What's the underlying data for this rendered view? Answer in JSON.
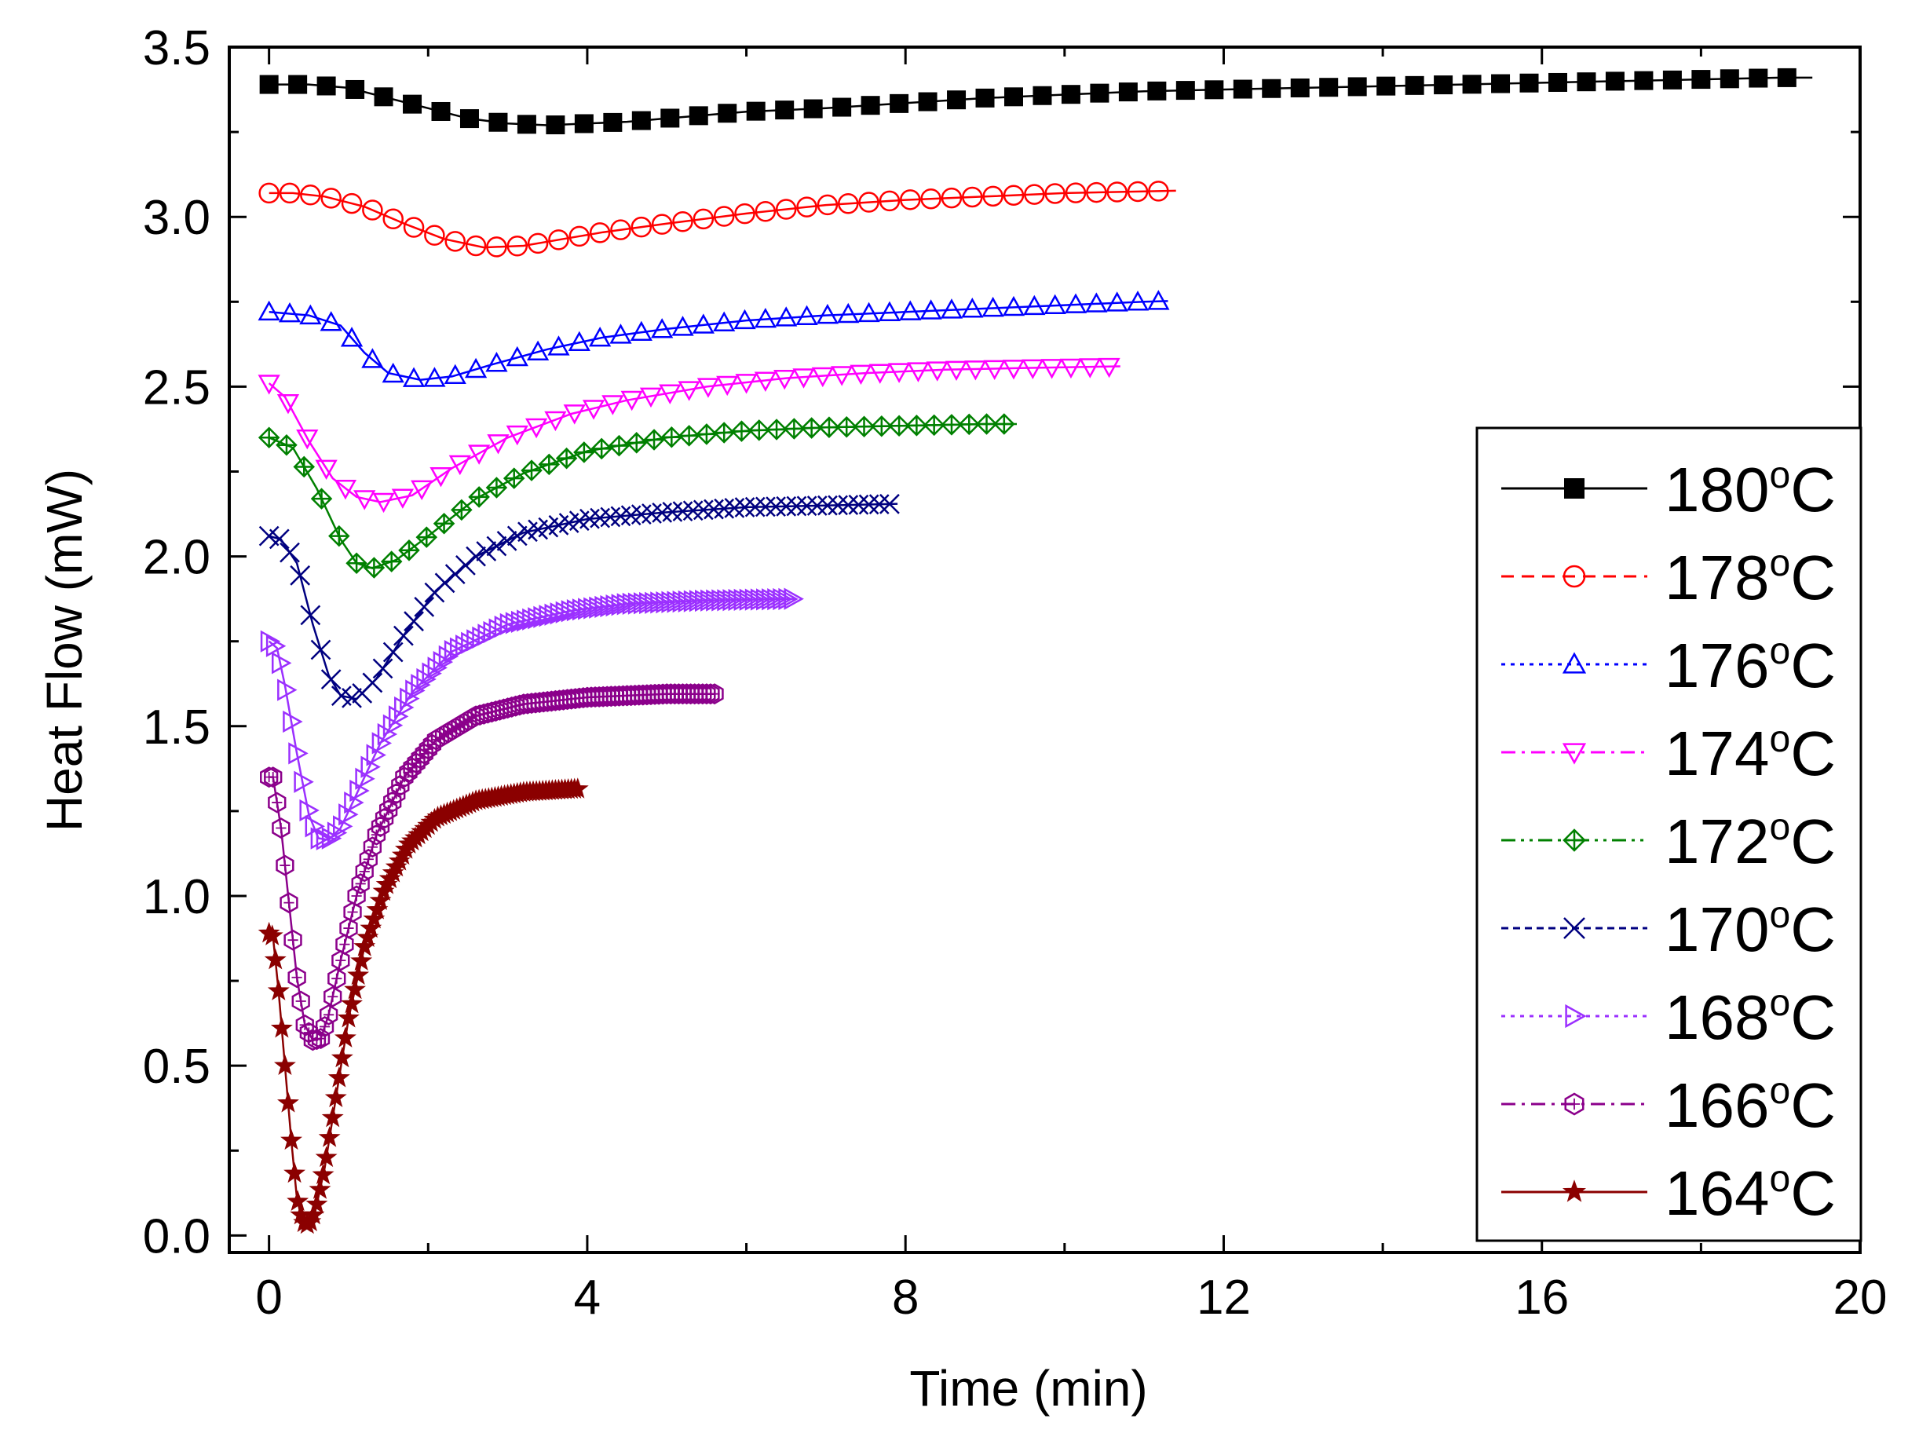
{
  "chart_data": {
    "type": "line",
    "title": "",
    "xlabel": "Time (min)",
    "ylabel": "Heat Flow (mW)",
    "xlim": [
      -0.5,
      20
    ],
    "ylim": [
      -0.05,
      3.5
    ],
    "x_ticks": [
      0,
      4,
      8,
      12,
      16,
      20
    ],
    "x_tick_labels": [
      "0",
      "4",
      "8",
      "12",
      "16",
      "20"
    ],
    "x_minor_step": 2,
    "y_ticks": [
      0.0,
      0.5,
      1.0,
      1.5,
      2.0,
      2.5,
      3.0,
      3.5
    ],
    "y_tick_labels": [
      "0.0",
      "0.5",
      "1.0",
      "1.5",
      "2.0",
      "2.5",
      "3.0",
      "3.5"
    ],
    "y_minor_step": 0.25,
    "grid": false,
    "legend_position": "right",
    "series": [
      {
        "name": "180°C",
        "label_num": "180",
        "label_sup": "o",
        "label_unit": "C",
        "color": "#000000",
        "marker": "square-filled",
        "dash": "solid",
        "legend_dash": "solid",
        "marker_step": 0.36,
        "points": [
          [
            0,
            3.39
          ],
          [
            0.5,
            3.39
          ],
          [
            1,
            3.38
          ],
          [
            1.5,
            3.35
          ],
          [
            2,
            3.32
          ],
          [
            2.5,
            3.29
          ],
          [
            3,
            3.275
          ],
          [
            3.5,
            3.27
          ],
          [
            4,
            3.275
          ],
          [
            4.5,
            3.28
          ],
          [
            5,
            3.29
          ],
          [
            6,
            3.31
          ],
          [
            7,
            3.32
          ],
          [
            8,
            3.335
          ],
          [
            9,
            3.35
          ],
          [
            10,
            3.36
          ],
          [
            11,
            3.37
          ],
          [
            12,
            3.375
          ],
          [
            13,
            3.38
          ],
          [
            14,
            3.385
          ],
          [
            15,
            3.39
          ],
          [
            16,
            3.395
          ],
          [
            17,
            3.4
          ],
          [
            18,
            3.405
          ],
          [
            19,
            3.41
          ],
          [
            19.4,
            3.41
          ]
        ]
      },
      {
        "name": "178°C",
        "label_num": "178",
        "label_sup": "o",
        "label_unit": "C",
        "color": "#ff0000",
        "marker": "circle-open",
        "dash": "solid",
        "legend_dash": "dash",
        "marker_step": 0.26,
        "points": [
          [
            0,
            3.07
          ],
          [
            0.3,
            3.07
          ],
          [
            0.7,
            3.06
          ],
          [
            1.2,
            3.03
          ],
          [
            1.7,
            2.98
          ],
          [
            2.2,
            2.935
          ],
          [
            2.7,
            2.91
          ],
          [
            3.2,
            2.915
          ],
          [
            3.7,
            2.935
          ],
          [
            4.2,
            2.955
          ],
          [
            5,
            2.98
          ],
          [
            6,
            3.01
          ],
          [
            7,
            3.035
          ],
          [
            8,
            3.05
          ],
          [
            9,
            3.06
          ],
          [
            10,
            3.07
          ],
          [
            11,
            3.075
          ],
          [
            11.4,
            3.077
          ]
        ]
      },
      {
        "name": "176°C",
        "label_num": "176",
        "label_sup": "o",
        "label_unit": "C",
        "color": "#0000ff",
        "marker": "triangle-up-open",
        "dash": "solid",
        "legend_dash": "dot",
        "marker_step": 0.26,
        "points": [
          [
            0,
            2.72
          ],
          [
            0.5,
            2.71
          ],
          [
            0.9,
            2.68
          ],
          [
            1.2,
            2.6
          ],
          [
            1.5,
            2.54
          ],
          [
            1.9,
            2.52
          ],
          [
            2.3,
            2.53
          ],
          [
            2.8,
            2.565
          ],
          [
            3.5,
            2.61
          ],
          [
            4.2,
            2.645
          ],
          [
            5,
            2.67
          ],
          [
            6,
            2.695
          ],
          [
            7,
            2.71
          ],
          [
            8,
            2.72
          ],
          [
            9,
            2.73
          ],
          [
            10,
            2.74
          ],
          [
            11,
            2.75
          ],
          [
            11.3,
            2.752
          ]
        ]
      },
      {
        "name": "174°C",
        "label_num": "174",
        "label_sup": "o",
        "label_unit": "C",
        "color": "#ff00ff",
        "marker": "triangle-down-open",
        "dash": "solid",
        "legend_dash": "dashdot",
        "marker_step": 0.24,
        "points": [
          [
            0,
            2.51
          ],
          [
            0.2,
            2.47
          ],
          [
            0.5,
            2.34
          ],
          [
            0.8,
            2.23
          ],
          [
            1.1,
            2.175
          ],
          [
            1.4,
            2.16
          ],
          [
            1.8,
            2.18
          ],
          [
            2.3,
            2.26
          ],
          [
            3,
            2.35
          ],
          [
            3.8,
            2.42
          ],
          [
            4.5,
            2.46
          ],
          [
            5.5,
            2.5
          ],
          [
            6.5,
            2.525
          ],
          [
            7.5,
            2.54
          ],
          [
            8.5,
            2.55
          ],
          [
            9.5,
            2.555
          ],
          [
            10.7,
            2.56
          ]
        ]
      },
      {
        "name": "172°C",
        "label_num": "172",
        "label_sup": "o",
        "label_unit": "C",
        "color": "#008000",
        "marker": "diamond-cross",
        "dash": "solid",
        "legend_dash": "dashdotdot",
        "marker_step": 0.22,
        "points": [
          [
            0,
            2.35
          ],
          [
            0.3,
            2.32
          ],
          [
            0.6,
            2.2
          ],
          [
            0.9,
            2.05
          ],
          [
            1.1,
            1.98
          ],
          [
            1.3,
            1.965
          ],
          [
            1.6,
            1.99
          ],
          [
            2.0,
            2.06
          ],
          [
            2.6,
            2.17
          ],
          [
            3.2,
            2.245
          ],
          [
            4,
            2.31
          ],
          [
            5,
            2.35
          ],
          [
            6,
            2.37
          ],
          [
            7,
            2.38
          ],
          [
            8,
            2.385
          ],
          [
            9,
            2.39
          ],
          [
            9.4,
            2.39
          ]
        ]
      },
      {
        "name": "170°C",
        "label_num": "170",
        "label_sup": "o",
        "label_unit": "C",
        "color": "#000080",
        "marker": "x-open",
        "dash": "solid",
        "legend_dash": "shortdash",
        "marker_step": 0.13,
        "points": [
          [
            0,
            2.06
          ],
          [
            0.15,
            2.05
          ],
          [
            0.35,
            1.98
          ],
          [
            0.55,
            1.8
          ],
          [
            0.75,
            1.65
          ],
          [
            0.9,
            1.59
          ],
          [
            1.1,
            1.58
          ],
          [
            1.35,
            1.64
          ],
          [
            1.7,
            1.77
          ],
          [
            2.1,
            1.9
          ],
          [
            2.6,
            2.0
          ],
          [
            3.2,
            2.07
          ],
          [
            4,
            2.11
          ],
          [
            5,
            2.13
          ],
          [
            6,
            2.145
          ],
          [
            7,
            2.15
          ],
          [
            7.9,
            2.155
          ]
        ]
      },
      {
        "name": "168°C",
        "label_num": "168",
        "label_sup": "o",
        "label_unit": "C",
        "color": "#9b30ff",
        "marker": "triangle-right-open",
        "dash": "solid",
        "legend_dash": "dot",
        "marker_step": 0.07,
        "points": [
          [
            0,
            1.75
          ],
          [
            0.1,
            1.73
          ],
          [
            0.2,
            1.62
          ],
          [
            0.35,
            1.42
          ],
          [
            0.5,
            1.24
          ],
          [
            0.62,
            1.17
          ],
          [
            0.75,
            1.165
          ],
          [
            0.9,
            1.2
          ],
          [
            1.1,
            1.3
          ],
          [
            1.4,
            1.45
          ],
          [
            1.8,
            1.6
          ],
          [
            2.3,
            1.72
          ],
          [
            3,
            1.8
          ],
          [
            3.8,
            1.84
          ],
          [
            4.5,
            1.86
          ],
          [
            5.5,
            1.87
          ],
          [
            6.6,
            1.875
          ]
        ]
      },
      {
        "name": "166°C",
        "label_num": "166",
        "label_sup": "o",
        "label_unit": "C",
        "color": "#8b008b",
        "marker": "hexagon-open",
        "dash": "solid",
        "legend_dash": "dashdot",
        "marker_step": 0.05,
        "points": [
          [
            0,
            1.35
          ],
          [
            0.05,
            1.35
          ],
          [
            0.15,
            1.2
          ],
          [
            0.25,
            0.98
          ],
          [
            0.35,
            0.76
          ],
          [
            0.45,
            0.62
          ],
          [
            0.55,
            0.575
          ],
          [
            0.65,
            0.58
          ],
          [
            0.75,
            0.65
          ],
          [
            0.9,
            0.81
          ],
          [
            1.1,
            1.0
          ],
          [
            1.35,
            1.18
          ],
          [
            1.7,
            1.35
          ],
          [
            2.1,
            1.46
          ],
          [
            2.6,
            1.53
          ],
          [
            3.2,
            1.565
          ],
          [
            4,
            1.585
          ],
          [
            5,
            1.595
          ],
          [
            5.6,
            1.595
          ]
        ]
      },
      {
        "name": "164°C",
        "label_num": "164",
        "label_sup": "o",
        "label_unit": "C",
        "color": "#8b0000",
        "marker": "star",
        "dash": "solid",
        "legend_dash": "solid",
        "marker_step": 0.04,
        "points": [
          [
            0,
            0.89
          ],
          [
            0.05,
            0.88
          ],
          [
            0.12,
            0.72
          ],
          [
            0.2,
            0.5
          ],
          [
            0.28,
            0.28
          ],
          [
            0.35,
            0.11
          ],
          [
            0.42,
            0.04
          ],
          [
            0.5,
            0.03
          ],
          [
            0.58,
            0.07
          ],
          [
            0.7,
            0.2
          ],
          [
            0.85,
            0.42
          ],
          [
            1.0,
            0.64
          ],
          [
            1.2,
            0.85
          ],
          [
            1.45,
            1.02
          ],
          [
            1.75,
            1.15
          ],
          [
            2.1,
            1.23
          ],
          [
            2.6,
            1.28
          ],
          [
            3.2,
            1.305
          ],
          [
            3.9,
            1.315
          ]
        ]
      }
    ]
  }
}
